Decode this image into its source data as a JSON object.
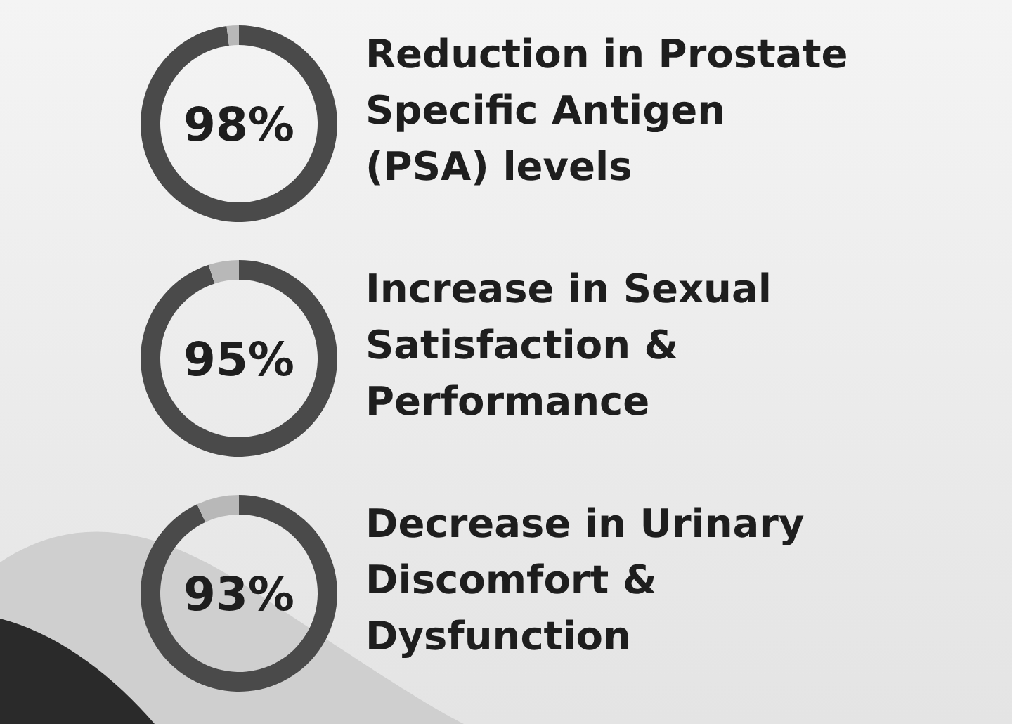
{
  "chart_data": [
    {
      "type": "donut",
      "title": "Reduction in Prostate Specific Antigen (PSA) levels",
      "categories": [
        null,
        null
      ],
      "values": [
        98,
        2
      ],
      "colors": [
        "#4a4a4a",
        "#b8b8b8"
      ],
      "value_labels": [
        "98%",
        null
      ]
    },
    {
      "type": "donut",
      "title": "Increase in Sexual Satisfaction & Performance",
      "categories": [
        null,
        null
      ],
      "values": [
        95,
        5
      ],
      "colors": [
        "#4a4a4a",
        "#b8b8b8"
      ],
      "value_labels": [
        "95%",
        null
      ]
    },
    {
      "type": "donut",
      "title": "Decrease in Urinary Discomfort & Dysfunction",
      "categories": [
        null,
        null
      ],
      "values": [
        93,
        7
      ],
      "colors": [
        "#4a4a4a",
        "#b8b8b8"
      ],
      "value_labels": [
        "93%",
        null
      ]
    }
  ]
}
